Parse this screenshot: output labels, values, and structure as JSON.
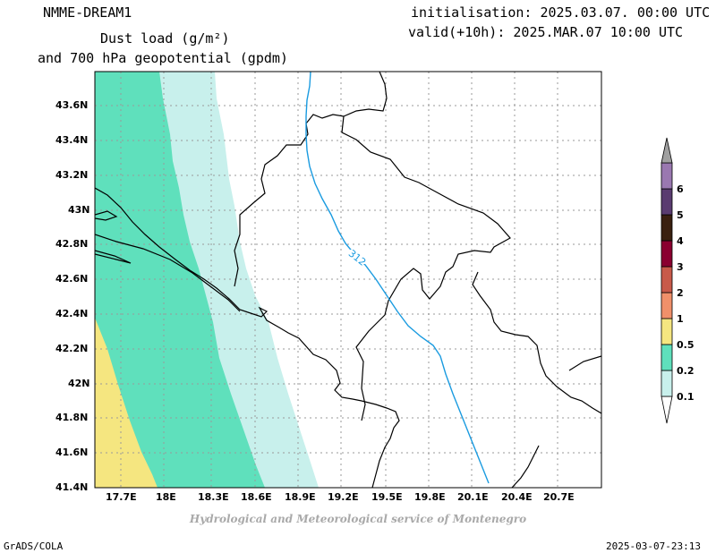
{
  "header": {
    "model": "NMME-DREAM1",
    "title_line1": "Dust load (g/m²)",
    "title_line2": "and 700 hPa geopotential (gpdm)",
    "init_line": "initialisation: 2025.03.07. 00:00 UTC",
    "valid_line": "valid(+10h): 2025.MAR.07 10:00 UTC"
  },
  "map": {
    "lat_ticks": [
      "43.6N",
      "43.4N",
      "43.2N",
      "43N",
      "42.8N",
      "42.6N",
      "42.4N",
      "42.2N",
      "42N",
      "41.8N",
      "41.6N",
      "41.4N"
    ],
    "lon_ticks": [
      "17.7E",
      "18E",
      "18.3E",
      "18.6E",
      "18.9E",
      "19.2E",
      "19.5E",
      "19.8E",
      "20.1E",
      "20.4E",
      "20.7E"
    ],
    "contour_label": "312",
    "colors": {
      "dust_0_1": "#c8f0ec",
      "dust_0_2": "#5fe0bc",
      "dust_0_5": "#f5e680",
      "contour": "#1a9be0",
      "coast": "#000000",
      "grid": "#9a9a9a"
    }
  },
  "colorbar": {
    "labels": [
      "0.1",
      "0.2",
      "0.5",
      "1",
      "2",
      "3",
      "4",
      "5",
      "6"
    ],
    "colors": [
      "#c8f0ec",
      "#5fe0bc",
      "#f5e680",
      "#f0906a",
      "#c85a4a",
      "#8a0030",
      "#3a2010",
      "#5a3c70",
      "#9a78b0",
      "#a0a0a0"
    ]
  },
  "footer": {
    "credit": "Hydrological and Meteorological service of Montenegro",
    "software": "GrADS/COLA",
    "timestamp": "2025-03-07-23:13"
  }
}
